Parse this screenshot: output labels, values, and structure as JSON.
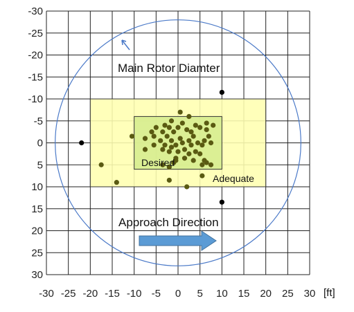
{
  "chart_data": {
    "type": "scatter",
    "title": "",
    "xlabel": "[ft]",
    "ylabel": "",
    "xlim": [
      -30,
      30
    ],
    "ylim": [
      30,
      -30
    ],
    "y_inverted": true,
    "x_ticks": [
      -30,
      -25,
      -20,
      -15,
      -10,
      -5,
      0,
      5,
      10,
      15,
      20,
      25,
      30
    ],
    "x_tick_labels": [
      "-30",
      "-25",
      "-20",
      "-15",
      "-10",
      "-5",
      "0",
      "5",
      "10",
      "15",
      "20",
      "25",
      "30"
    ],
    "y_ticks": [
      -30,
      -25,
      -20,
      -15,
      -10,
      -5,
      0,
      5,
      10,
      15,
      20,
      25,
      30
    ],
    "y_tick_labels": [
      "-30",
      "-25",
      "-20",
      "-15",
      "-10",
      "-5",
      "0",
      "5",
      "10",
      "15",
      "20",
      "25",
      "30"
    ],
    "grid": true,
    "regions": [
      {
        "name": "Adequate",
        "x": [
          -20,
          20
        ],
        "y": [
          -10,
          10
        ],
        "color": "#ffffb0"
      },
      {
        "name": "Desired",
        "x": [
          -10,
          10
        ],
        "y": [
          -6,
          6
        ],
        "color": "#d6ed8e"
      }
    ],
    "circle": {
      "label": "Main Rotor Diamter",
      "center": [
        0,
        0
      ],
      "radius": 28,
      "color": "#4a79c8"
    },
    "arrow_label": "Approach Direction",
    "arrow_color": "#5b9bd5",
    "series": [
      {
        "point_color": "#5a5a12",
        "points": [
          [
            0.5,
            -7.0
          ],
          [
            2.5,
            -6.0
          ],
          [
            -1.5,
            -5.0
          ],
          [
            1.0,
            -4.5
          ],
          [
            6.5,
            -4.5
          ],
          [
            -3.0,
            -4.0
          ],
          [
            4.0,
            -4.0
          ],
          [
            8.0,
            -4.0
          ],
          [
            -5.0,
            -3.5
          ],
          [
            -2.0,
            -3.5
          ],
          [
            0.0,
            -3.5
          ],
          [
            2.0,
            -3.0
          ],
          [
            5.0,
            -3.5
          ],
          [
            6.5,
            -3.0
          ],
          [
            -6.0,
            -2.5
          ],
          [
            -3.5,
            -2.5
          ],
          [
            -1.0,
            -2.5
          ],
          [
            3.0,
            -2.5
          ],
          [
            -5.5,
            -1.5
          ],
          [
            -2.5,
            -1.5
          ],
          [
            0.5,
            -1.0
          ],
          [
            3.5,
            -1.5
          ],
          [
            7.0,
            -1.5
          ],
          [
            -10.5,
            -1.5
          ],
          [
            -7.5,
            -1.0
          ],
          [
            -4.0,
            -0.5
          ],
          [
            -1.5,
            -0.5
          ],
          [
            1.0,
            0.0
          ],
          [
            2.5,
            -0.5
          ],
          [
            4.5,
            0.0
          ],
          [
            6.0,
            -0.5
          ],
          [
            -5.5,
            0.5
          ],
          [
            -3.0,
            0.5
          ],
          [
            -0.5,
            0.5
          ],
          [
            3.0,
            0.5
          ],
          [
            5.5,
            0.5
          ],
          [
            7.5,
            0.0
          ],
          [
            -1.5,
            1.0
          ],
          [
            1.5,
            1.5
          ],
          [
            -3.5,
            1.5
          ],
          [
            -7.5,
            1.5
          ],
          [
            -2.0,
            2.0
          ],
          [
            0.0,
            2.0
          ],
          [
            2.5,
            2.5
          ],
          [
            5.0,
            2.5
          ],
          [
            4.0,
            2.0
          ],
          [
            -0.5,
            3.5
          ],
          [
            1.5,
            3.5
          ],
          [
            3.5,
            4.0
          ],
          [
            -1.0,
            4.5
          ],
          [
            6.5,
            4.5
          ],
          [
            5.5,
            5.0
          ],
          [
            7.5,
            5.0
          ],
          [
            -3.5,
            5.0
          ],
          [
            -2.0,
            5.5
          ],
          [
            -0.5,
            4.0
          ],
          [
            6.0,
            4.0
          ],
          [
            5.5,
            7.5
          ],
          [
            -2.0,
            8.5
          ],
          [
            2.0,
            10.0
          ],
          [
            -14.0,
            9.0
          ],
          [
            -17.5,
            5.0
          ]
        ]
      },
      {
        "point_color": "#000000",
        "points": [
          [
            -22.0,
            0.0
          ],
          [
            10.0,
            -11.5
          ],
          [
            10.0,
            13.5
          ]
        ]
      }
    ]
  }
}
